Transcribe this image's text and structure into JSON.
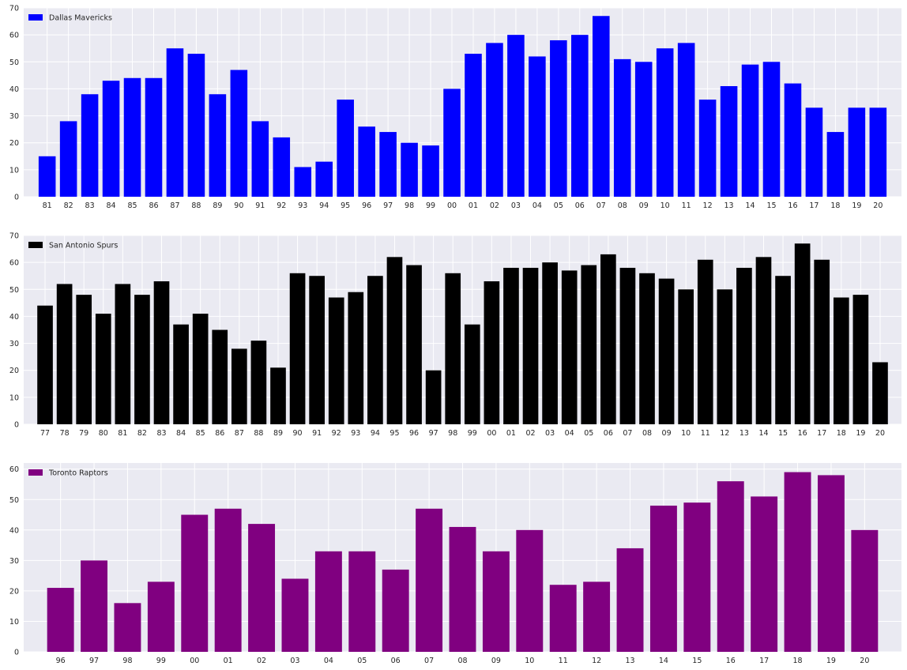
{
  "chart_data": [
    {
      "type": "bar",
      "categories": [
        "81",
        "82",
        "83",
        "84",
        "85",
        "86",
        "87",
        "88",
        "89",
        "90",
        "91",
        "92",
        "93",
        "94",
        "95",
        "96",
        "97",
        "98",
        "99",
        "00",
        "01",
        "02",
        "03",
        "04",
        "05",
        "06",
        "07",
        "08",
        "09",
        "10",
        "11",
        "12",
        "13",
        "14",
        "15",
        "16",
        "17",
        "18",
        "19",
        "20"
      ],
      "series": [
        {
          "name": "Dallas Mavericks",
          "color": "#0000ff",
          "values": [
            15,
            28,
            38,
            43,
            44,
            44,
            55,
            53,
            38,
            47,
            28,
            22,
            11,
            13,
            36,
            26,
            24,
            20,
            19,
            40,
            53,
            57,
            60,
            52,
            58,
            60,
            67,
            51,
            50,
            55,
            57,
            36,
            41,
            49,
            50,
            42,
            33,
            24,
            33,
            33
          ]
        }
      ],
      "ylim": [
        0,
        70
      ],
      "yticks": [
        0,
        10,
        20,
        30,
        40,
        50,
        60,
        70
      ],
      "grid": true,
      "legend_position": "top-left"
    },
    {
      "type": "bar",
      "categories": [
        "77",
        "78",
        "79",
        "80",
        "81",
        "82",
        "83",
        "84",
        "85",
        "86",
        "87",
        "88",
        "89",
        "90",
        "91",
        "92",
        "93",
        "94",
        "95",
        "96",
        "97",
        "98",
        "99",
        "00",
        "01",
        "02",
        "03",
        "04",
        "05",
        "06",
        "07",
        "08",
        "09",
        "10",
        "11",
        "12",
        "13",
        "14",
        "15",
        "16",
        "17",
        "18",
        "19",
        "20"
      ],
      "series": [
        {
          "name": "San Antonio Spurs",
          "color": "#000000",
          "values": [
            44,
            52,
            48,
            41,
            52,
            48,
            53,
            37,
            41,
            35,
            28,
            31,
            21,
            56,
            55,
            47,
            49,
            55,
            62,
            59,
            20,
            56,
            37,
            53,
            58,
            58,
            60,
            57,
            59,
            63,
            58,
            56,
            54,
            50,
            61,
            50,
            58,
            62,
            55,
            67,
            61,
            47,
            48,
            23
          ]
        }
      ],
      "ylim": [
        0,
        70
      ],
      "yticks": [
        0,
        10,
        20,
        30,
        40,
        50,
        60,
        70
      ],
      "grid": true,
      "legend_position": "top-left"
    },
    {
      "type": "bar",
      "categories": [
        "96",
        "97",
        "98",
        "99",
        "00",
        "01",
        "02",
        "03",
        "04",
        "05",
        "06",
        "07",
        "08",
        "09",
        "10",
        "11",
        "12",
        "13",
        "14",
        "15",
        "16",
        "17",
        "18",
        "19",
        "20"
      ],
      "series": [
        {
          "name": "Toronto Raptors",
          "color": "#800080",
          "values": [
            21,
            30,
            16,
            23,
            45,
            47,
            42,
            24,
            33,
            33,
            27,
            47,
            41,
            33,
            40,
            22,
            23,
            34,
            48,
            49,
            56,
            51,
            59,
            58,
            40
          ]
        }
      ],
      "ylim": [
        0,
        62
      ],
      "yticks": [
        0,
        10,
        20,
        30,
        40,
        50,
        60
      ],
      "grid": true,
      "legend_position": "top-left"
    }
  ]
}
